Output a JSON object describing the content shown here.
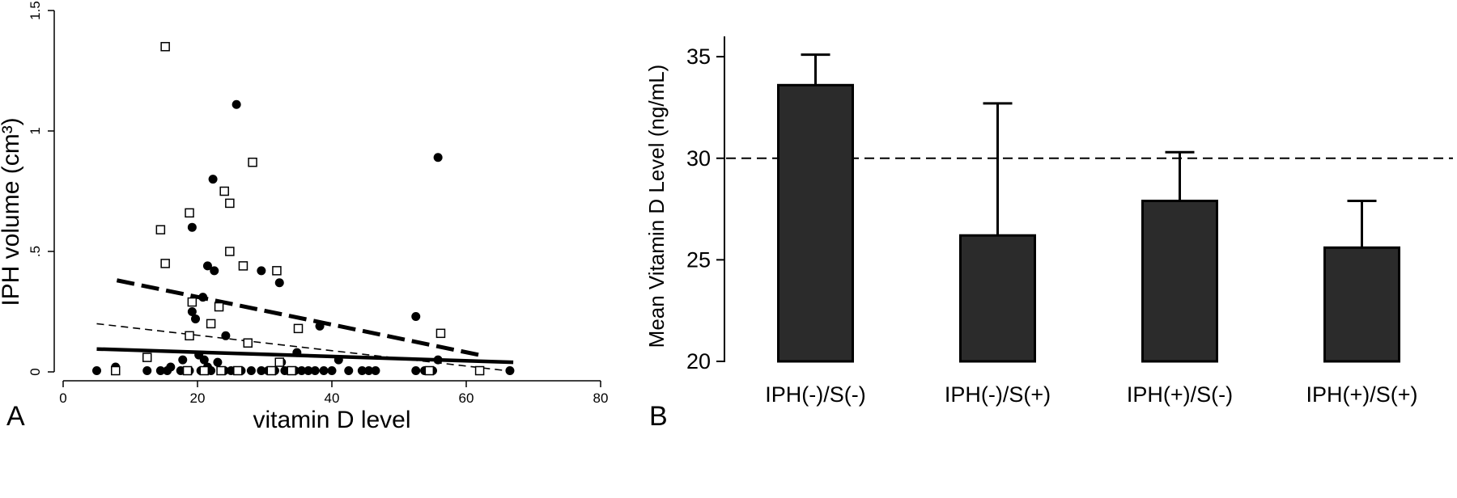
{
  "figure": {
    "panel_a_letter": "A",
    "panel_b_letter": "B"
  },
  "chart_data": [
    {
      "type": "scatter",
      "panel": "A",
      "xlabel": "vitamin D level",
      "ylabel": "IPH volume (cm³)",
      "xlim": [
        0,
        80
      ],
      "ylim": [
        0,
        1.5
      ],
      "x_ticks": [
        {
          "value": 0,
          "label": "0"
        },
        {
          "value": 20,
          "label": "20"
        },
        {
          "value": 40,
          "label": "40"
        },
        {
          "value": 60,
          "label": "60"
        },
        {
          "value": 80,
          "label": "80"
        }
      ],
      "y_ticks": [
        {
          "value": 0,
          "label": "0"
        },
        {
          "value": 0.5,
          "label": ".5"
        },
        {
          "value": 1,
          "label": "1"
        },
        {
          "value": 1.5,
          "label": "1.5"
        }
      ],
      "series": [
        {
          "marker": "filled-circle",
          "color": "#000000",
          "points": [
            [
              25.8,
              1.11
            ],
            [
              55.8,
              0.89
            ],
            [
              22.3,
              0.8
            ],
            [
              19.2,
              0.6
            ],
            [
              21.5,
              0.44
            ],
            [
              22.5,
              0.42
            ],
            [
              29.5,
              0.42
            ],
            [
              32.2,
              0.37
            ],
            [
              20.8,
              0.31
            ],
            [
              19.2,
              0.25
            ],
            [
              52.5,
              0.23
            ],
            [
              19.7,
              0.22
            ],
            [
              38.2,
              0.19
            ],
            [
              24.2,
              0.15
            ],
            [
              34.8,
              0.08
            ],
            [
              20.2,
              0.07
            ],
            [
              41,
              0.05
            ],
            [
              55.8,
              0.05
            ],
            [
              21,
              0.05
            ],
            [
              17.8,
              0.05
            ],
            [
              32.5,
              0.04
            ],
            [
              23,
              0.04
            ],
            [
              16,
              0.02
            ],
            [
              7.8,
              0.02
            ],
            [
              21.5,
              0.02
            ],
            [
              5,
              0.005
            ],
            [
              12.5,
              0.005
            ],
            [
              14.5,
              0.005
            ],
            [
              15.5,
              0.005
            ],
            [
              17.5,
              0.005
            ],
            [
              18.8,
              0.005
            ],
            [
              20.5,
              0.005
            ],
            [
              22,
              0.005
            ],
            [
              24,
              0.005
            ],
            [
              25,
              0.005
            ],
            [
              26.5,
              0.005
            ],
            [
              28,
              0.005
            ],
            [
              29.5,
              0.005
            ],
            [
              30.5,
              0.005
            ],
            [
              31.5,
              0.005
            ],
            [
              33,
              0.005
            ],
            [
              34.5,
              0.005
            ],
            [
              35.5,
              0.005
            ],
            [
              36.5,
              0.005
            ],
            [
              37.5,
              0.005
            ],
            [
              38.8,
              0.005
            ],
            [
              40,
              0.005
            ],
            [
              42.5,
              0.005
            ],
            [
              44.5,
              0.005
            ],
            [
              45.5,
              0.005
            ],
            [
              46.5,
              0.005
            ],
            [
              52.5,
              0.005
            ],
            [
              53.8,
              0.005
            ],
            [
              55,
              0.005
            ],
            [
              66.5,
              0.005
            ]
          ]
        },
        {
          "marker": "hollow-square",
          "color": "#000000",
          "points": [
            [
              15.2,
              1.35
            ],
            [
              28.2,
              0.87
            ],
            [
              24,
              0.75
            ],
            [
              24.8,
              0.7
            ],
            [
              18.8,
              0.66
            ],
            [
              14.5,
              0.59
            ],
            [
              24.8,
              0.5
            ],
            [
              15.2,
              0.45
            ],
            [
              26.8,
              0.44
            ],
            [
              31.8,
              0.42
            ],
            [
              19.2,
              0.29
            ],
            [
              23.2,
              0.27
            ],
            [
              22,
              0.2
            ],
            [
              35,
              0.18
            ],
            [
              56.2,
              0.16
            ],
            [
              18.8,
              0.15
            ],
            [
              27.5,
              0.12
            ],
            [
              12.5,
              0.06
            ],
            [
              32.2,
              0.04
            ],
            [
              7.8,
              0.005
            ],
            [
              18.5,
              0.005
            ],
            [
              21,
              0.005
            ],
            [
              23.5,
              0.005
            ],
            [
              26,
              0.005
            ],
            [
              31,
              0.005
            ],
            [
              34,
              0.005
            ],
            [
              54.5,
              0.005
            ],
            [
              62,
              0.005
            ]
          ]
        }
      ],
      "fit_lines": [
        {
          "style": "thick-dashed",
          "x": [
            8,
            62
          ],
          "y": [
            0.38,
            0.07
          ]
        },
        {
          "style": "thin-dashed",
          "x": [
            5,
            66
          ],
          "y": [
            0.2,
            0.005
          ]
        },
        {
          "style": "thick-solid",
          "x": [
            5,
            67
          ],
          "y": [
            0.095,
            0.04
          ]
        }
      ]
    },
    {
      "type": "bar",
      "panel": "B",
      "xlabel": "",
      "ylabel": "Mean Vitamin D Level (ng/mL)",
      "ylim": [
        20,
        36
      ],
      "y_ticks": [
        {
          "value": 20,
          "label": "20"
        },
        {
          "value": 25,
          "label": "25"
        },
        {
          "value": 30,
          "label": "30"
        },
        {
          "value": 35,
          "label": "35"
        }
      ],
      "categories": [
        "IPH(-)/S(-)",
        "IPH(-)/S(+)",
        "IPH(+)/S(-)",
        "IPH(+)/S(+)"
      ],
      "values": [
        33.6,
        26.2,
        27.9,
        25.6
      ],
      "error_upper": [
        35.1,
        32.7,
        30.3,
        27.9
      ],
      "reference_line": {
        "value": 30,
        "style": "dashed"
      },
      "bar_color": "#2b2b2b"
    }
  ]
}
